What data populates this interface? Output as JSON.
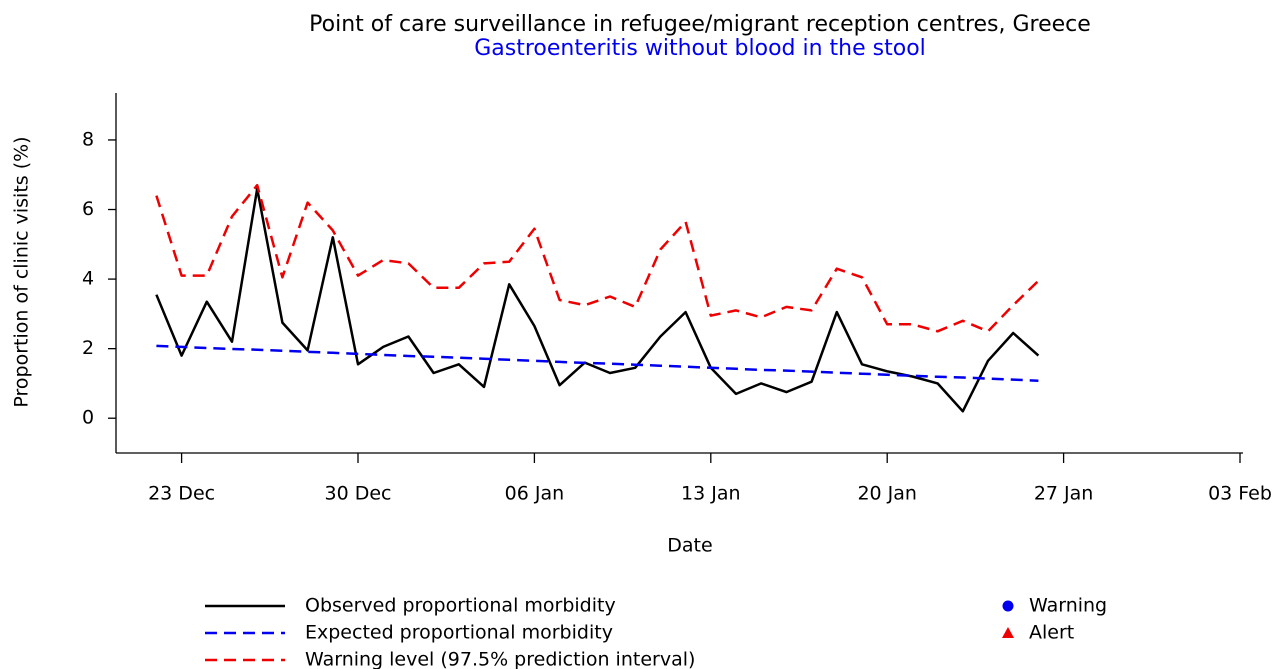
{
  "chart_data": {
    "type": "line",
    "title": "Point of care surveillance in refugee/migrant reception centres, Greece",
    "subtitle": "Gastroenteritis without blood in the stool",
    "subtitle_color": "#0000ee",
    "x_label": "Date",
    "y_label": "Proportion of clinic visits (%)",
    "x": [
      "22 Dec",
      "23 Dec",
      "24 Dec",
      "25 Dec",
      "26 Dec",
      "27 Dec",
      "28 Dec",
      "29 Dec",
      "30 Dec",
      "31 Dec",
      "01 Jan",
      "02 Jan",
      "03 Jan",
      "04 Jan",
      "05 Jan",
      "06 Jan",
      "07 Jan",
      "08 Jan",
      "09 Jan",
      "10 Jan",
      "11 Jan",
      "12 Jan",
      "13 Jan",
      "14 Jan",
      "15 Jan",
      "16 Jan",
      "17 Jan",
      "18 Jan",
      "19 Jan",
      "20 Jan",
      "21 Jan",
      "22 Jan",
      "23 Jan",
      "24 Jan",
      "25 Jan",
      "26 Jan"
    ],
    "series": [
      {
        "name": "Observed proportional morbidity",
        "color": "#000000",
        "dash": false,
        "values": [
          3.55,
          1.8,
          3.35,
          2.2,
          6.6,
          2.75,
          1.95,
          5.2,
          1.55,
          2.05,
          2.35,
          1.3,
          1.55,
          0.9,
          3.85,
          2.65,
          0.95,
          1.6,
          1.3,
          1.45,
          2.35,
          3.05,
          1.45,
          0.7,
          1.0,
          0.75,
          1.05,
          3.05,
          1.55,
          1.35,
          1.2,
          1.0,
          0.2,
          1.65,
          2.45,
          1.8
        ]
      },
      {
        "name": "Expected proportional morbidity",
        "color": "#0000ee",
        "dash": true,
        "values": [
          2.08,
          2.05,
          2.02,
          1.99,
          1.97,
          1.94,
          1.91,
          1.88,
          1.85,
          1.82,
          1.79,
          1.77,
          1.74,
          1.71,
          1.68,
          1.65,
          1.62,
          1.59,
          1.57,
          1.54,
          1.51,
          1.48,
          1.45,
          1.42,
          1.39,
          1.37,
          1.34,
          1.31,
          1.28,
          1.25,
          1.22,
          1.19,
          1.17,
          1.14,
          1.11,
          1.08
        ]
      },
      {
        "name": "Warning level (97.5% prediction interval)",
        "color": "#ee0000",
        "dash": true,
        "values": [
          6.4,
          4.1,
          4.1,
          5.8,
          6.7,
          4.05,
          6.2,
          5.4,
          4.1,
          4.55,
          4.45,
          3.75,
          3.75,
          4.45,
          4.5,
          5.45,
          3.4,
          3.25,
          3.5,
          3.2,
          4.85,
          5.65,
          2.95,
          3.1,
          2.9,
          3.2,
          3.1,
          4.3,
          4.05,
          2.7,
          2.7,
          2.5,
          2.8,
          2.5,
          3.25,
          3.95
        ]
      }
    ],
    "markers": [
      {
        "name": "Warning",
        "color": "#0000ee",
        "shape": "circle"
      },
      {
        "name": "Alert",
        "color": "#ee0000",
        "shape": "triangle"
      }
    ],
    "xlim": [
      "20 Dec",
      "03 Feb"
    ],
    "xticks": [
      "23 Dec",
      "30 Dec",
      "06 Jan",
      "13 Jan",
      "20 Jan",
      "27 Jan",
      "03 Feb"
    ],
    "ylim": [
      -1,
      9.35
    ],
    "yticks": [
      0,
      2,
      4,
      6,
      8
    ],
    "grid": false
  }
}
